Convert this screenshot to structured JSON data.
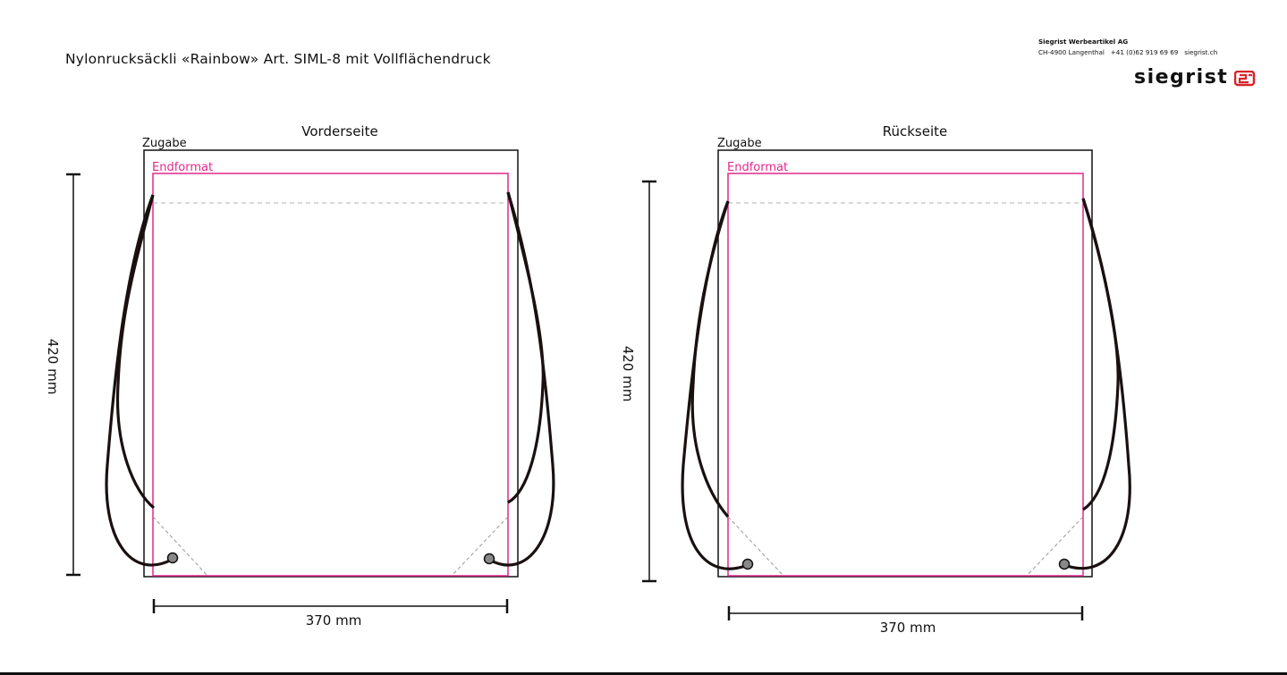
{
  "header": {
    "title": "Nylonrucksäckli «Rainbow» Art. SIML-8 mit Vollflächendruck"
  },
  "company": {
    "name": "Siegrist Werbeartikel AG",
    "address": "CH-4900 Langenthal",
    "phone": "+41 (0)62 919 69 69",
    "web": "siegrist.ch",
    "logo_text": "siegrist"
  },
  "panels": [
    {
      "title": "Vorderseite",
      "zugabe_label": "Zugabe",
      "endformat_label": "Endformat",
      "height_label": "420 mm",
      "width_label": "370 mm"
    },
    {
      "title": "Rückseite",
      "zugabe_label": "Zugabe",
      "endformat_label": "Endformat",
      "height_label": "420 mm",
      "width_label": "370 mm"
    }
  ],
  "colors": {
    "endformat": "#e0288c",
    "zugabe": "#111111",
    "cord": "#1a1010",
    "guide": "#b0b0b0"
  }
}
